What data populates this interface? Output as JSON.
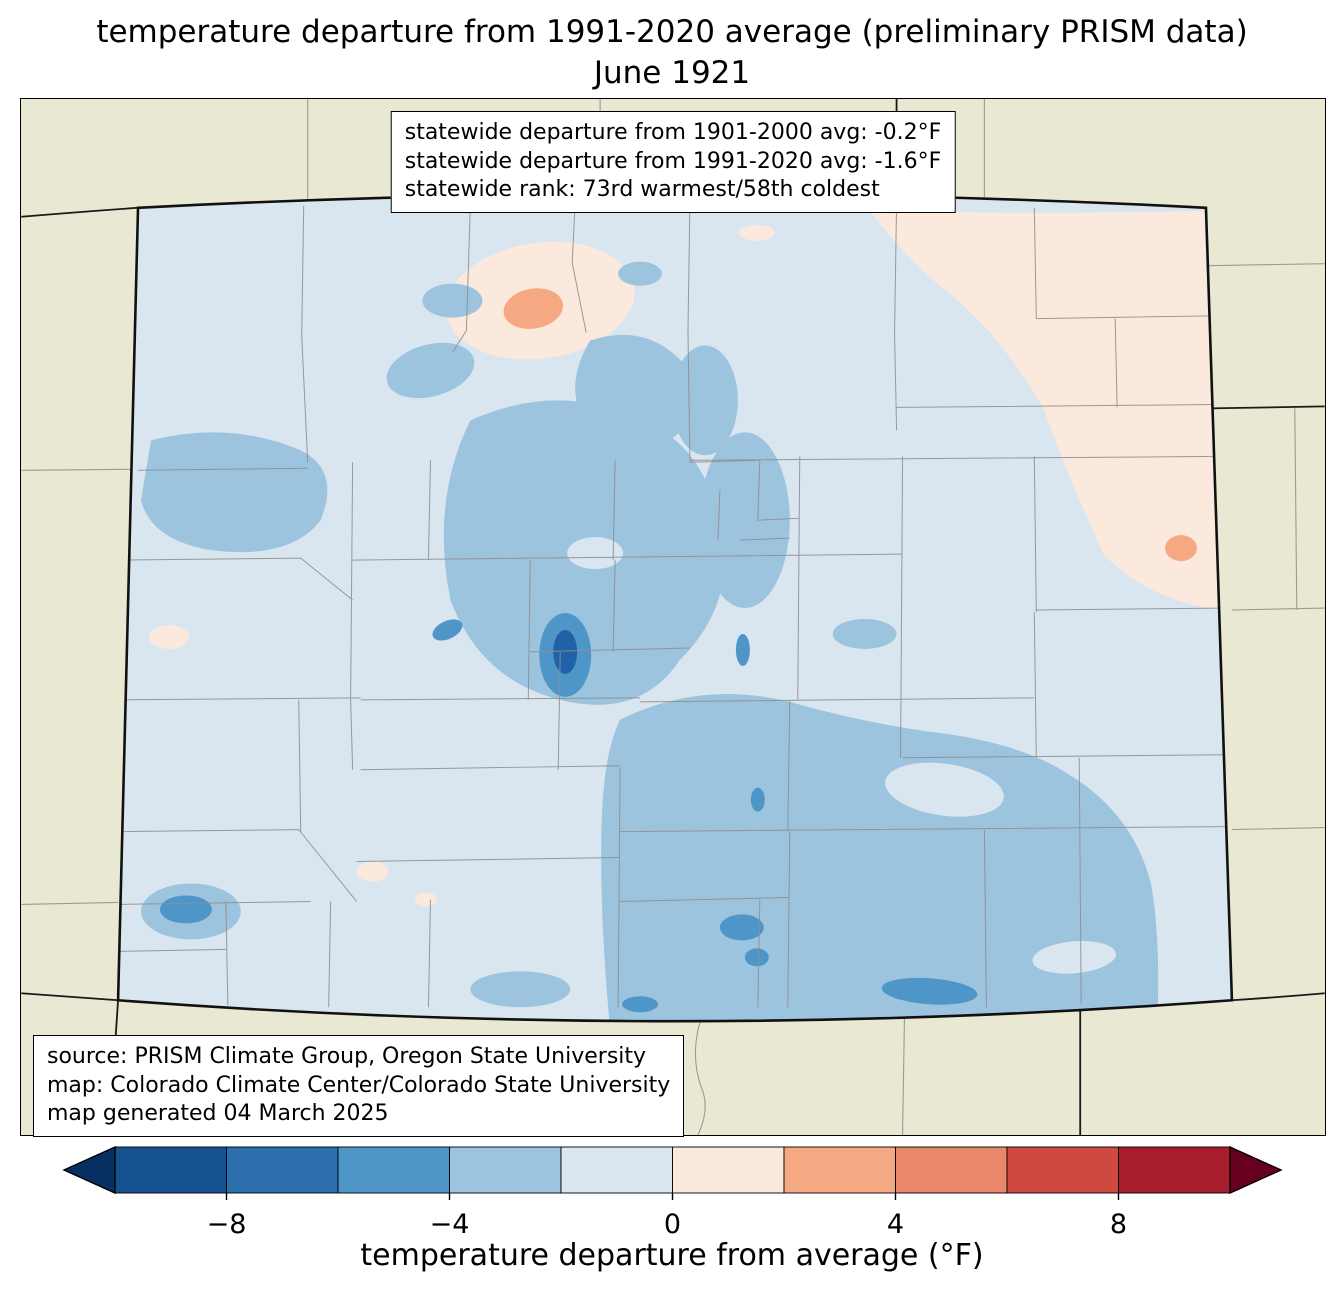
{
  "title": {
    "line1": "temperature departure from 1991-2020 average (preliminary PRISM data)",
    "line2": "June 1921"
  },
  "stats_box": {
    "lines": [
      "statewide departure from 1901-2000 avg: -0.2°F",
      "statewide departure from 1991-2020 avg: -1.6°F",
      "statewide rank: 73rd warmest/58th coldest"
    ]
  },
  "source_box": {
    "lines": [
      "source: PRISM Climate Group, Oregon State University",
      "map: Colorado Climate Center/Colorado State University",
      "map generated 04 March 2025"
    ]
  },
  "colorbar": {
    "label": "temperature departure from average (°F)",
    "min": -10,
    "max": 10,
    "ticks": [
      {
        "value": -8,
        "label": "−8"
      },
      {
        "value": -4,
        "label": "−4"
      },
      {
        "value": 0,
        "label": "0"
      },
      {
        "value": 4,
        "label": "4"
      },
      {
        "value": 8,
        "label": "8"
      }
    ],
    "segment_colors": [
      "#175290",
      "#2c6fad",
      "#4f96c8",
      "#9cc4df",
      "#d9e6f0",
      "#fbe9de",
      "#f4a983",
      "#e8876a",
      "#ce4a41",
      "#a81d2e"
    ],
    "arrow_left_color": "#053061",
    "arrow_right_color": "#67001f"
  },
  "palette": {
    "outside": "#e9e8d2",
    "state_base": "#d9e6f0",
    "blue1": "#9cc4df",
    "blue2": "#4f96c8",
    "blue3": "#2161a8",
    "pink1": "#fbe9de",
    "pink2": "#f4a983",
    "county_line": "#8f8f8f",
    "neighbor_black": "#1a1a1a",
    "neighbor_gray": "#9a9a9a",
    "state_border": "#111111"
  }
}
